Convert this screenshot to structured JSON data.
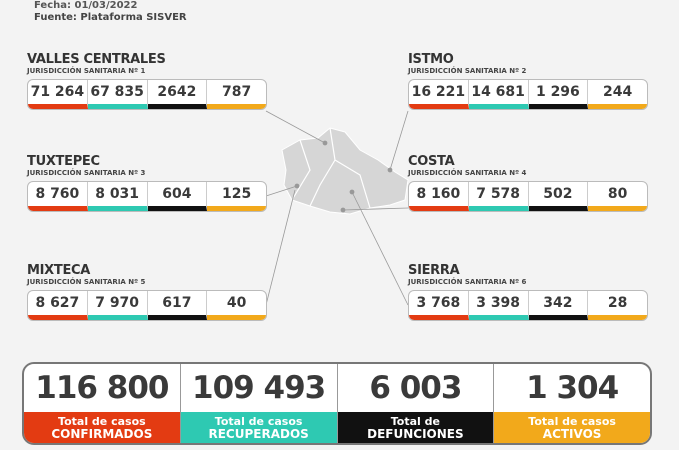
{
  "header": {
    "fecha": "Fecha: 01/03/2022",
    "fuente": "Fuente: Plataforma SISVER"
  },
  "colors": {
    "confirmados": "#e33b12",
    "recuperados": "#2ec9b2",
    "defunciones": "#111111",
    "activos": "#f2a91b"
  },
  "regions": [
    {
      "name": "VALLES CENTRALES",
      "sub": "JURISDICCIÓN SANITARIA Nº 1",
      "values": [
        "71 264",
        "67 835",
        "2642",
        "787"
      ]
    },
    {
      "name": "ISTMO",
      "sub": "JURISDICCIÓN SANITARIA Nº 2",
      "values": [
        "16 221",
        "14 681",
        "1 296",
        "244"
      ]
    },
    {
      "name": "TUXTEPEC",
      "sub": "JURISDICCIÓN SANITARIA Nº 3",
      "values": [
        "8 760",
        "8 031",
        "604",
        "125"
      ]
    },
    {
      "name": "COSTA",
      "sub": "JURISDICCIÓN SANITARIA Nº 4",
      "values": [
        "8 160",
        "7 578",
        "502",
        "80"
      ]
    },
    {
      "name": "MIXTECA",
      "sub": "JURISDICCIÓN SANITARIA Nº 5",
      "values": [
        "8 627",
        "7 970",
        "617",
        "40"
      ]
    },
    {
      "name": "SIERRA",
      "sub": "JURISDICCIÓN SANITARIA Nº 6",
      "values": [
        "3 768",
        "3 398",
        "342",
        "28"
      ]
    }
  ],
  "totals": [
    {
      "value": "116 800",
      "l1": "Total de casos",
      "l2": "CONFIRMADOS"
    },
    {
      "value": "109 493",
      "l1": "Total de casos",
      "l2": "RECUPERADOS"
    },
    {
      "value": "6 003",
      "l1": "Total de",
      "l2": "DEFUNCIONES"
    },
    {
      "value": "1 304",
      "l1": "Total de casos",
      "l2": "ACTIVOS"
    }
  ]
}
